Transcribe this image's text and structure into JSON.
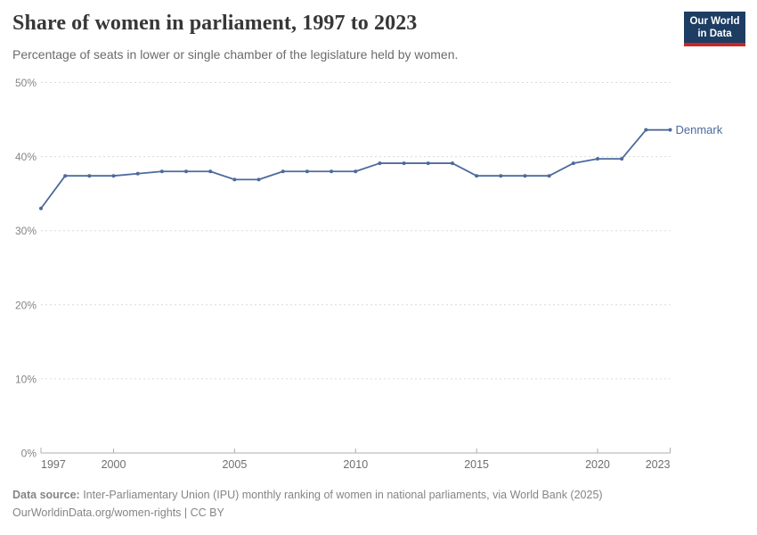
{
  "header": {
    "title": "Share of women in parliament, 1997 to 2023",
    "subtitle": "Percentage of seats in lower or single chamber of the legislature held by women.",
    "logo": {
      "line1": "Our World",
      "line2": "in Data",
      "bg_color": "#1d3d63",
      "bar_color": "#cb2626"
    }
  },
  "chart_data": {
    "type": "line",
    "title": "Share of women in parliament, 1997 to 2023",
    "xlabel": "",
    "ylabel": "",
    "xlim": [
      1997,
      2023
    ],
    "ylim": [
      0,
      50
    ],
    "x_ticks": [
      1997,
      2000,
      2005,
      2010,
      2015,
      2020,
      2023
    ],
    "y_ticks": [
      0,
      10,
      20,
      30,
      40,
      50
    ],
    "tick_suffix": "%",
    "grid": "horizontal-dashed",
    "legend_position": "end-of-line-label",
    "series": [
      {
        "name": "Denmark",
        "color": "#4c6a9c",
        "x": [
          1997,
          1998,
          1999,
          2000,
          2001,
          2002,
          2003,
          2004,
          2005,
          2006,
          2007,
          2008,
          2009,
          2010,
          2011,
          2012,
          2013,
          2014,
          2015,
          2016,
          2017,
          2018,
          2019,
          2020,
          2021,
          2022,
          2023
        ],
        "values": [
          33.0,
          37.4,
          37.4,
          37.4,
          37.7,
          38.0,
          38.0,
          38.0,
          36.9,
          36.9,
          38.0,
          38.0,
          38.0,
          38.0,
          39.1,
          39.1,
          39.1,
          39.1,
          37.4,
          37.4,
          37.4,
          37.4,
          39.1,
          39.7,
          39.7,
          43.6,
          43.6
        ]
      }
    ]
  },
  "footer": {
    "source_label": "Data source:",
    "source_text": " Inter-Parliamentary Union (IPU) monthly ranking of women in national parliaments, via World Bank (2025)",
    "note": "OurWorldinData.org/women-rights | CC BY"
  }
}
